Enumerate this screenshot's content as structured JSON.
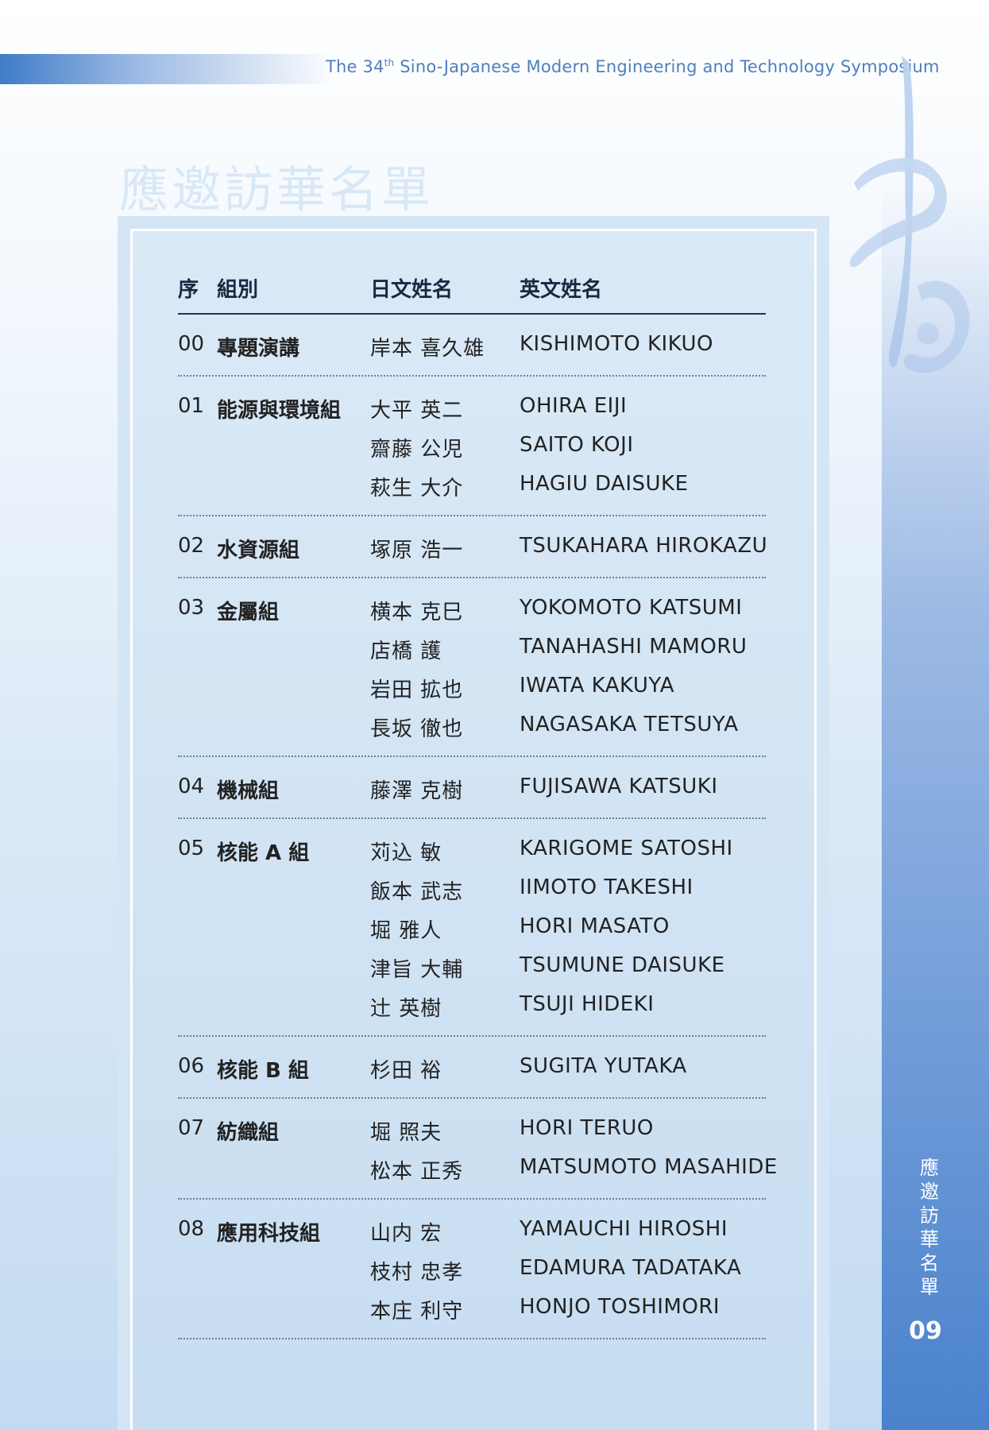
{
  "header": {
    "prefix": "The 34",
    "superscript": "th",
    "suffix": " Sino-Japanese Modern Engineering and Technology Symposium"
  },
  "page_title": "應邀訪華名單",
  "side_title_chars": [
    "應",
    "邀",
    "訪",
    "華",
    "名",
    "單"
  ],
  "page_number": "09",
  "table": {
    "columns": [
      "序",
      "組別",
      "日文姓名",
      "英文姓名"
    ],
    "groups": [
      {
        "no": "00",
        "name": "專題演講",
        "members": [
          {
            "jp": "岸本 喜久雄",
            "en": "KISHIMOTO  KIKUO"
          }
        ]
      },
      {
        "no": "01",
        "name": "能源與環境組",
        "members": [
          {
            "jp": "大平 英二",
            "en": "OHIRA  EIJI"
          },
          {
            "jp": "齋藤 公児",
            "en": "SAITO  KOJI"
          },
          {
            "jp": "萩生 大介",
            "en": "HAGIU  DAISUKE"
          }
        ]
      },
      {
        "no": "02",
        "name": "水資源組",
        "members": [
          {
            "jp": "塚原 浩一",
            "en": "TSUKAHARA  HIROKAZU"
          }
        ]
      },
      {
        "no": "03",
        "name": "金屬組",
        "members": [
          {
            "jp": "横本 克巳",
            "en": "YOKOMOTO  KATSUMI"
          },
          {
            "jp": "店橋 護",
            "en": "TANAHASHI  MAMORU"
          },
          {
            "jp": "岩田 拡也",
            "en": "IWATA  KAKUYA"
          },
          {
            "jp": "長坂 徹也",
            "en": "NAGASAKA  TETSUYA"
          }
        ]
      },
      {
        "no": "04",
        "name": "機械組",
        "members": [
          {
            "jp": "藤澤 克樹",
            "en": "FUJISAWA  KATSUKI"
          }
        ]
      },
      {
        "no": "05",
        "name": "核能 A 組",
        "members": [
          {
            "jp": "苅込 敏",
            "en": "KARIGOME  SATOSHI"
          },
          {
            "jp": "飯本 武志",
            "en": "IIMOTO  TAKESHI"
          },
          {
            "jp": "堀 雅人",
            "en": "HORI  MASATO"
          },
          {
            "jp": "津旨 大輔",
            "en": "TSUMUNE  DAISUKE"
          },
          {
            "jp": "辻 英樹",
            "en": "TSUJI  HIDEKI"
          }
        ]
      },
      {
        "no": "06",
        "name": "核能 B 組",
        "members": [
          {
            "jp": "杉田 裕",
            "en": "SUGITA  YUTAKA"
          }
        ]
      },
      {
        "no": "07",
        "name": "紡織組",
        "members": [
          {
            "jp": "堀 照夫",
            "en": "HORI  TERUO"
          },
          {
            "jp": "松本 正秀",
            "en": "MATSUMOTO  MASAHIDE"
          }
        ]
      },
      {
        "no": "08",
        "name": "應用科技組",
        "members": [
          {
            "jp": "山内 宏",
            "en": "YAMAUCHI  HIROSHI"
          },
          {
            "jp": "枝村 忠孝",
            "en": "EDAMURA  TADATAKA"
          },
          {
            "jp": "本庄  利守",
            "en": "HONJO  TOSHIMORI"
          }
        ]
      }
    ]
  }
}
